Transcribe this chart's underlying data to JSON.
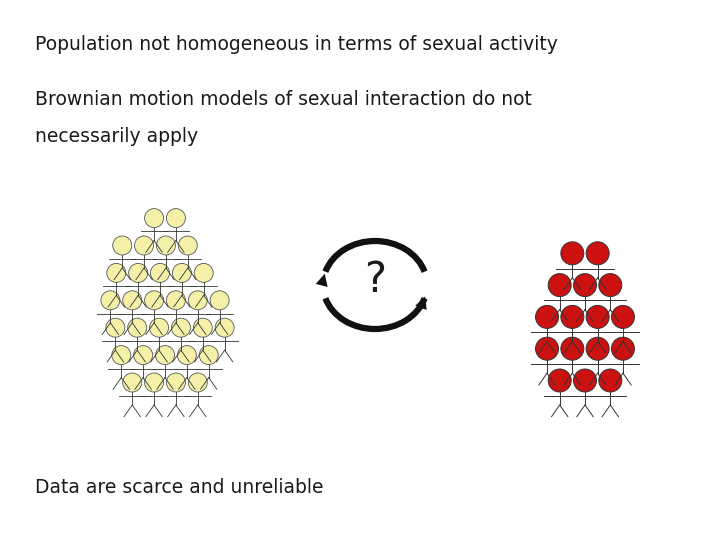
{
  "bg_color": "#ffffff",
  "text_line1": "Population not homogeneous in terms of sexual activity",
  "text_line2a": "Brownian motion models of sexual interaction do not",
  "text_line2b": "necessarily apply",
  "text_line3": "Data are scarce and unreliable",
  "text_color": "#1a1a1a",
  "text_fontsize": 13.5,
  "question_fontsize": 30,
  "left_group_color": "#f5f0a8",
  "left_group_edge": "#555555",
  "right_group_color": "#cc1111",
  "right_group_edge": "#333333",
  "arrow_color": "#111111",
  "stick_color": "#333333",
  "fig_width": 7.2,
  "fig_height": 5.4,
  "dpi": 100
}
